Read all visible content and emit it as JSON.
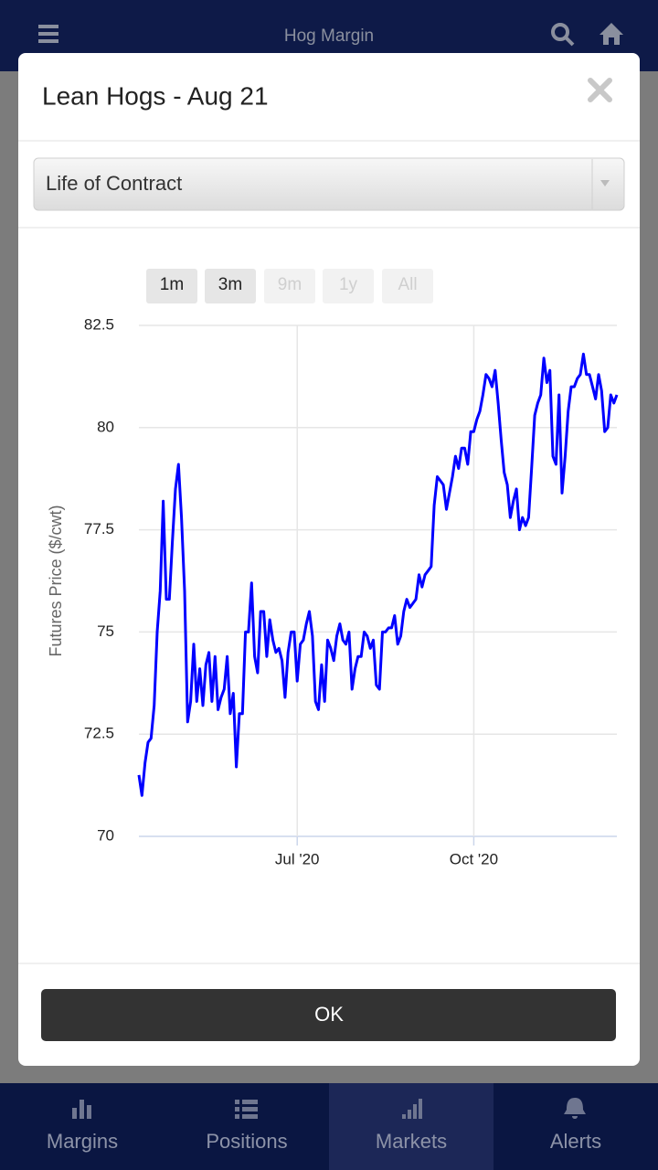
{
  "app_bar": {
    "title": "Hog Margin"
  },
  "dialog": {
    "title": "Lean Hogs - Aug 21",
    "select": "Life of Contract",
    "range_buttons": [
      "1m",
      "3m",
      "9m",
      "1y",
      "All"
    ],
    "ok": "OK"
  },
  "chart_data": {
    "type": "line",
    "y_label": "Futures Price ($/cwt)",
    "color": "#0000ff",
    "grid": true,
    "ylim": [
      70,
      82.5
    ],
    "yticks": [
      70,
      72.5,
      75,
      77.5,
      80,
      82.5
    ],
    "xlim": [
      0,
      157
    ],
    "xticks": [
      {
        "value": 52,
        "label": "Jul '20"
      },
      {
        "value": 110,
        "label": "Oct '20"
      }
    ],
    "values": [
      71.5,
      71.0,
      71.8,
      72.3,
      72.4,
      73.2,
      75.0,
      76.0,
      78.2,
      75.8,
      75.8,
      77.2,
      78.5,
      79.1,
      77.8,
      76.0,
      72.8,
      73.3,
      74.7,
      73.3,
      74.1,
      73.2,
      74.2,
      74.5,
      73.3,
      74.4,
      73.1,
      73.4,
      73.6,
      74.4,
      73.0,
      73.5,
      71.7,
      73.0,
      73.0,
      75.0,
      75.0,
      76.2,
      74.4,
      74.0,
      75.5,
      75.5,
      74.4,
      75.3,
      74.8,
      74.5,
      74.6,
      74.3,
      73.4,
      74.5,
      75.0,
      75.0,
      73.8,
      74.7,
      74.8,
      75.2,
      75.5,
      74.9,
      73.3,
      73.1,
      74.2,
      73.3,
      74.8,
      74.6,
      74.3,
      74.9,
      75.2,
      74.8,
      74.7,
      75.0,
      73.6,
      74.1,
      74.4,
      74.4,
      75.0,
      74.9,
      74.6,
      74.8,
      73.7,
      73.6,
      75.0,
      75.0,
      75.1,
      75.1,
      75.4,
      74.7,
      74.9,
      75.5,
      75.8,
      75.6,
      75.7,
      75.8,
      76.4,
      76.1,
      76.4,
      76.5,
      76.6,
      78.1,
      78.8,
      78.7,
      78.6,
      78.0,
      78.4,
      78.8,
      79.3,
      79.0,
      79.5,
      79.5,
      79.1,
      79.9,
      79.9,
      80.2,
      80.4,
      80.8,
      81.3,
      81.2,
      81.0,
      81.4,
      80.6,
      79.7,
      78.9,
      78.6,
      77.8,
      78.2,
      78.5,
      77.5,
      77.8,
      77.6,
      77.8,
      79.0,
      80.3,
      80.6,
      80.8,
      81.7,
      81.1,
      81.4,
      79.3,
      79.1,
      80.8,
      78.4,
      79.3,
      80.4,
      81.0,
      81.0,
      81.2,
      81.3,
      81.8,
      81.3,
      81.3,
      81.0,
      80.7,
      81.3,
      80.9,
      79.9,
      80.0,
      80.8,
      80.6,
      80.8
    ]
  },
  "tabs": [
    "Margins",
    "Positions",
    "Markets",
    "Alerts"
  ]
}
